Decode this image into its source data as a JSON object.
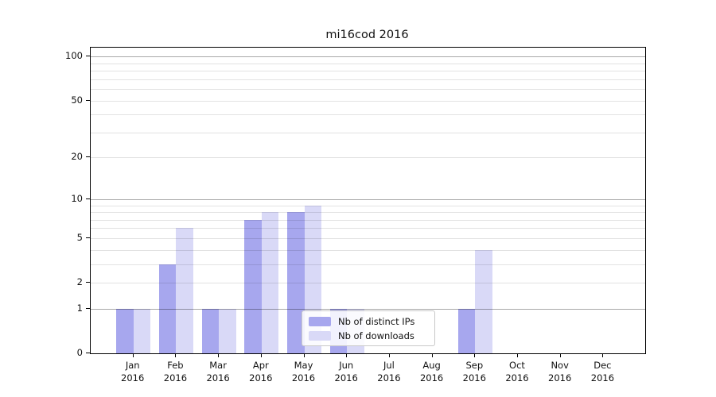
{
  "chart_data": {
    "type": "bar",
    "title": "mi16cod 2016",
    "categories": [
      "Jan",
      "Feb",
      "Mar",
      "Apr",
      "May",
      "Jun",
      "Jul",
      "Aug",
      "Sep",
      "Oct",
      "Nov",
      "Dec"
    ],
    "category_year": "2016",
    "series": [
      {
        "name": "Nb of distinct IPs",
        "color": "#a7a7ee",
        "values": [
          1,
          3,
          1,
          7,
          8,
          1,
          0,
          0,
          1,
          0,
          0,
          0
        ]
      },
      {
        "name": "Nb of downloads",
        "color": "#d9d9f7",
        "values": [
          1,
          6,
          1,
          8,
          9,
          1,
          0,
          0,
          4,
          0,
          0,
          0
        ]
      }
    ],
    "xlabel": "",
    "ylabel": "",
    "y_axis": {
      "scale": "log10(1+value)",
      "tick_values": [
        0,
        1,
        2,
        5,
        10,
        20,
        50,
        100
      ],
      "gridline_values": [
        1,
        2,
        3,
        4,
        5,
        6,
        7,
        8,
        9,
        10,
        20,
        30,
        40,
        50,
        60,
        70,
        80,
        90,
        100
      ],
      "major_gridline_values": [
        1,
        10,
        100
      ],
      "ylim": [
        0,
        115
      ]
    },
    "grid": true,
    "legend": {
      "position": "lower center",
      "frame": true
    }
  }
}
